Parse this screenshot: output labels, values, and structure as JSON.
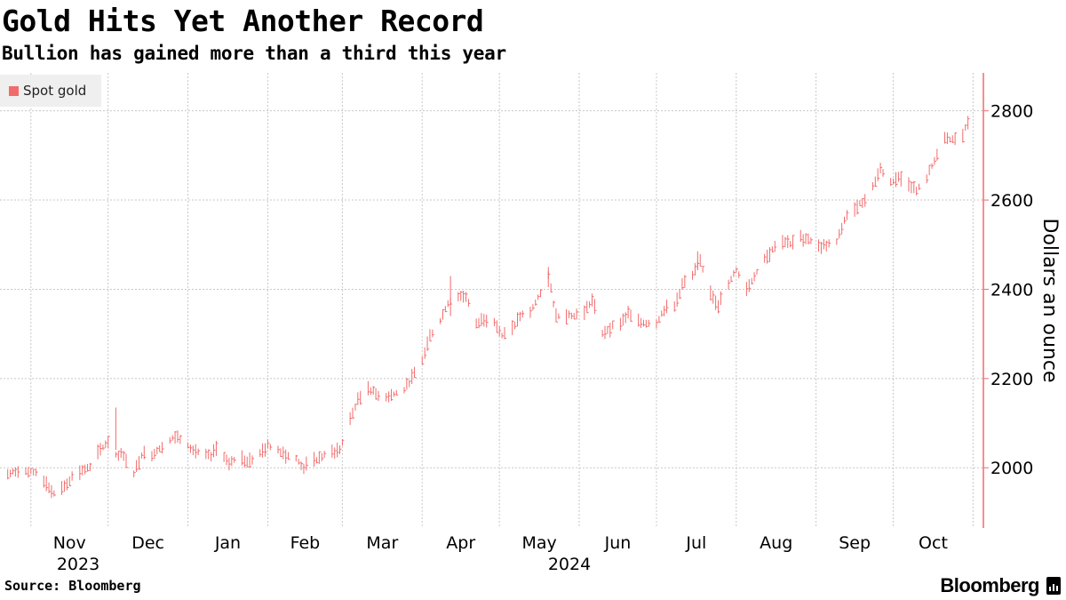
{
  "header": {
    "title": "Gold Hits Yet Another Record",
    "subtitle": "Bullion has gained more than a third this year"
  },
  "footer": {
    "source": "Source: Bloomberg",
    "brand": "Bloomberg"
  },
  "colors": {
    "series": "#f26b6b",
    "axis": "#f26b6b",
    "grid": "#c8c8c8",
    "legend_bg": "#efefef"
  },
  "chart_data": {
    "type": "line",
    "title": "Gold Hits Yet Another Record",
    "subtitle": "Bullion has gained more than a third this year",
    "ylabel": "Dollars an ounce",
    "xlabel": "",
    "ylim": [
      1865,
      2885
    ],
    "y_ticks": [
      2000,
      2200,
      2400,
      2600,
      2800
    ],
    "x_ticks": [
      "Nov",
      "Dec",
      "Jan",
      "Feb",
      "Mar",
      "Apr",
      "May",
      "Jun",
      "Jul",
      "Aug",
      "Sep",
      "Oct"
    ],
    "year_labels": [
      "2023",
      "2024"
    ],
    "legend": {
      "entries": [
        "Spot gold"
      ],
      "position": "top-left"
    },
    "grid": true,
    "series": [
      {
        "name": "Spot gold",
        "style": "daily high-low bars",
        "points": [
          [
            "2023-10-23",
            1985
          ],
          [
            "2023-10-27",
            1995
          ],
          [
            "2023-10-31",
            1990
          ],
          [
            "2023-11-03",
            1990
          ],
          [
            "2023-11-07",
            1965
          ],
          [
            "2023-11-10",
            1940
          ],
          [
            "2023-11-14",
            1960
          ],
          [
            "2023-11-17",
            1980
          ],
          [
            "2023-11-21",
            1995
          ],
          [
            "2023-11-24",
            2000
          ],
          [
            "2023-11-28",
            2040
          ],
          [
            "2023-12-01",
            2060
          ],
          [
            "2023-12-04",
            2030
          ],
          [
            "2023-12-07",
            2030
          ],
          [
            "2023-12-11",
            1985
          ],
          [
            "2023-12-14",
            2030
          ],
          [
            "2023-12-18",
            2030
          ],
          [
            "2023-12-21",
            2045
          ],
          [
            "2023-12-27",
            2070
          ],
          [
            "2023-12-30",
            2065
          ],
          [
            "2024-01-03",
            2040
          ],
          [
            "2024-01-06",
            2030
          ],
          [
            "2024-01-10",
            2025
          ],
          [
            "2024-01-13",
            2050
          ],
          [
            "2024-01-17",
            2005
          ],
          [
            "2024-01-20",
            2025
          ],
          [
            "2024-01-24",
            2015
          ],
          [
            "2024-01-28",
            2025
          ],
          [
            "2024-02-01",
            2050
          ],
          [
            "2024-02-04",
            2045
          ],
          [
            "2024-02-08",
            2030
          ],
          [
            "2024-02-12",
            2020
          ],
          [
            "2024-02-15",
            2000
          ],
          [
            "2024-02-19",
            2015
          ],
          [
            "2024-02-22",
            2025
          ],
          [
            "2024-02-26",
            2035
          ],
          [
            "2024-02-29",
            2040
          ],
          [
            "2024-03-04",
            2110
          ],
          [
            "2024-03-07",
            2150
          ],
          [
            "2024-03-11",
            2180
          ],
          [
            "2024-03-14",
            2165
          ],
          [
            "2024-03-18",
            2160
          ],
          [
            "2024-03-21",
            2165
          ],
          [
            "2024-03-25",
            2175
          ],
          [
            "2024-03-28",
            2200
          ],
          [
            "2024-04-01",
            2240
          ],
          [
            "2024-04-04",
            2295
          ],
          [
            "2024-04-08",
            2330
          ],
          [
            "2024-04-11",
            2370
          ],
          [
            "2024-04-15",
            2385
          ],
          [
            "2024-04-18",
            2385
          ],
          [
            "2024-04-22",
            2320
          ],
          [
            "2024-04-25",
            2335
          ],
          [
            "2024-04-29",
            2330
          ],
          [
            "2024-05-02",
            2295
          ],
          [
            "2024-05-06",
            2310
          ],
          [
            "2024-05-09",
            2340
          ],
          [
            "2024-05-13",
            2350
          ],
          [
            "2024-05-16",
            2380
          ],
          [
            "2024-05-20",
            2430
          ],
          [
            "2024-05-23",
            2340
          ],
          [
            "2024-05-27",
            2345
          ],
          [
            "2024-05-30",
            2340
          ],
          [
            "2024-06-03",
            2350
          ],
          [
            "2024-06-06",
            2375
          ],
          [
            "2024-06-10",
            2300
          ],
          [
            "2024-06-13",
            2315
          ],
          [
            "2024-06-17",
            2325
          ],
          [
            "2024-06-20",
            2345
          ],
          [
            "2024-06-24",
            2325
          ],
          [
            "2024-06-27",
            2325
          ],
          [
            "2024-07-01",
            2325
          ],
          [
            "2024-07-04",
            2355
          ],
          [
            "2024-07-08",
            2360
          ],
          [
            "2024-07-11",
            2410
          ],
          [
            "2024-07-15",
            2430
          ],
          [
            "2024-07-18",
            2460
          ],
          [
            "2024-07-22",
            2395
          ],
          [
            "2024-07-25",
            2365
          ],
          [
            "2024-07-29",
            2410
          ],
          [
            "2024-08-01",
            2445
          ],
          [
            "2024-08-05",
            2400
          ],
          [
            "2024-08-08",
            2430
          ],
          [
            "2024-08-12",
            2470
          ],
          [
            "2024-08-15",
            2490
          ],
          [
            "2024-08-19",
            2510
          ],
          [
            "2024-08-22",
            2500
          ],
          [
            "2024-08-26",
            2515
          ],
          [
            "2024-08-29",
            2515
          ],
          [
            "2024-09-02",
            2495
          ],
          [
            "2024-09-05",
            2500
          ],
          [
            "2024-09-09",
            2505
          ],
          [
            "2024-09-12",
            2555
          ],
          [
            "2024-09-16",
            2585
          ],
          [
            "2024-09-19",
            2595
          ],
          [
            "2024-09-23",
            2630
          ],
          [
            "2024-09-26",
            2670
          ],
          [
            "2024-09-30",
            2640
          ],
          [
            "2024-10-03",
            2650
          ],
          [
            "2024-10-07",
            2640
          ],
          [
            "2024-10-10",
            2620
          ],
          [
            "2024-10-14",
            2650
          ],
          [
            "2024-10-17",
            2690
          ],
          [
            "2024-10-21",
            2735
          ],
          [
            "2024-10-24",
            2735
          ],
          [
            "2024-10-28",
            2745
          ],
          [
            "2024-10-30",
            2775
          ]
        ]
      }
    ]
  }
}
